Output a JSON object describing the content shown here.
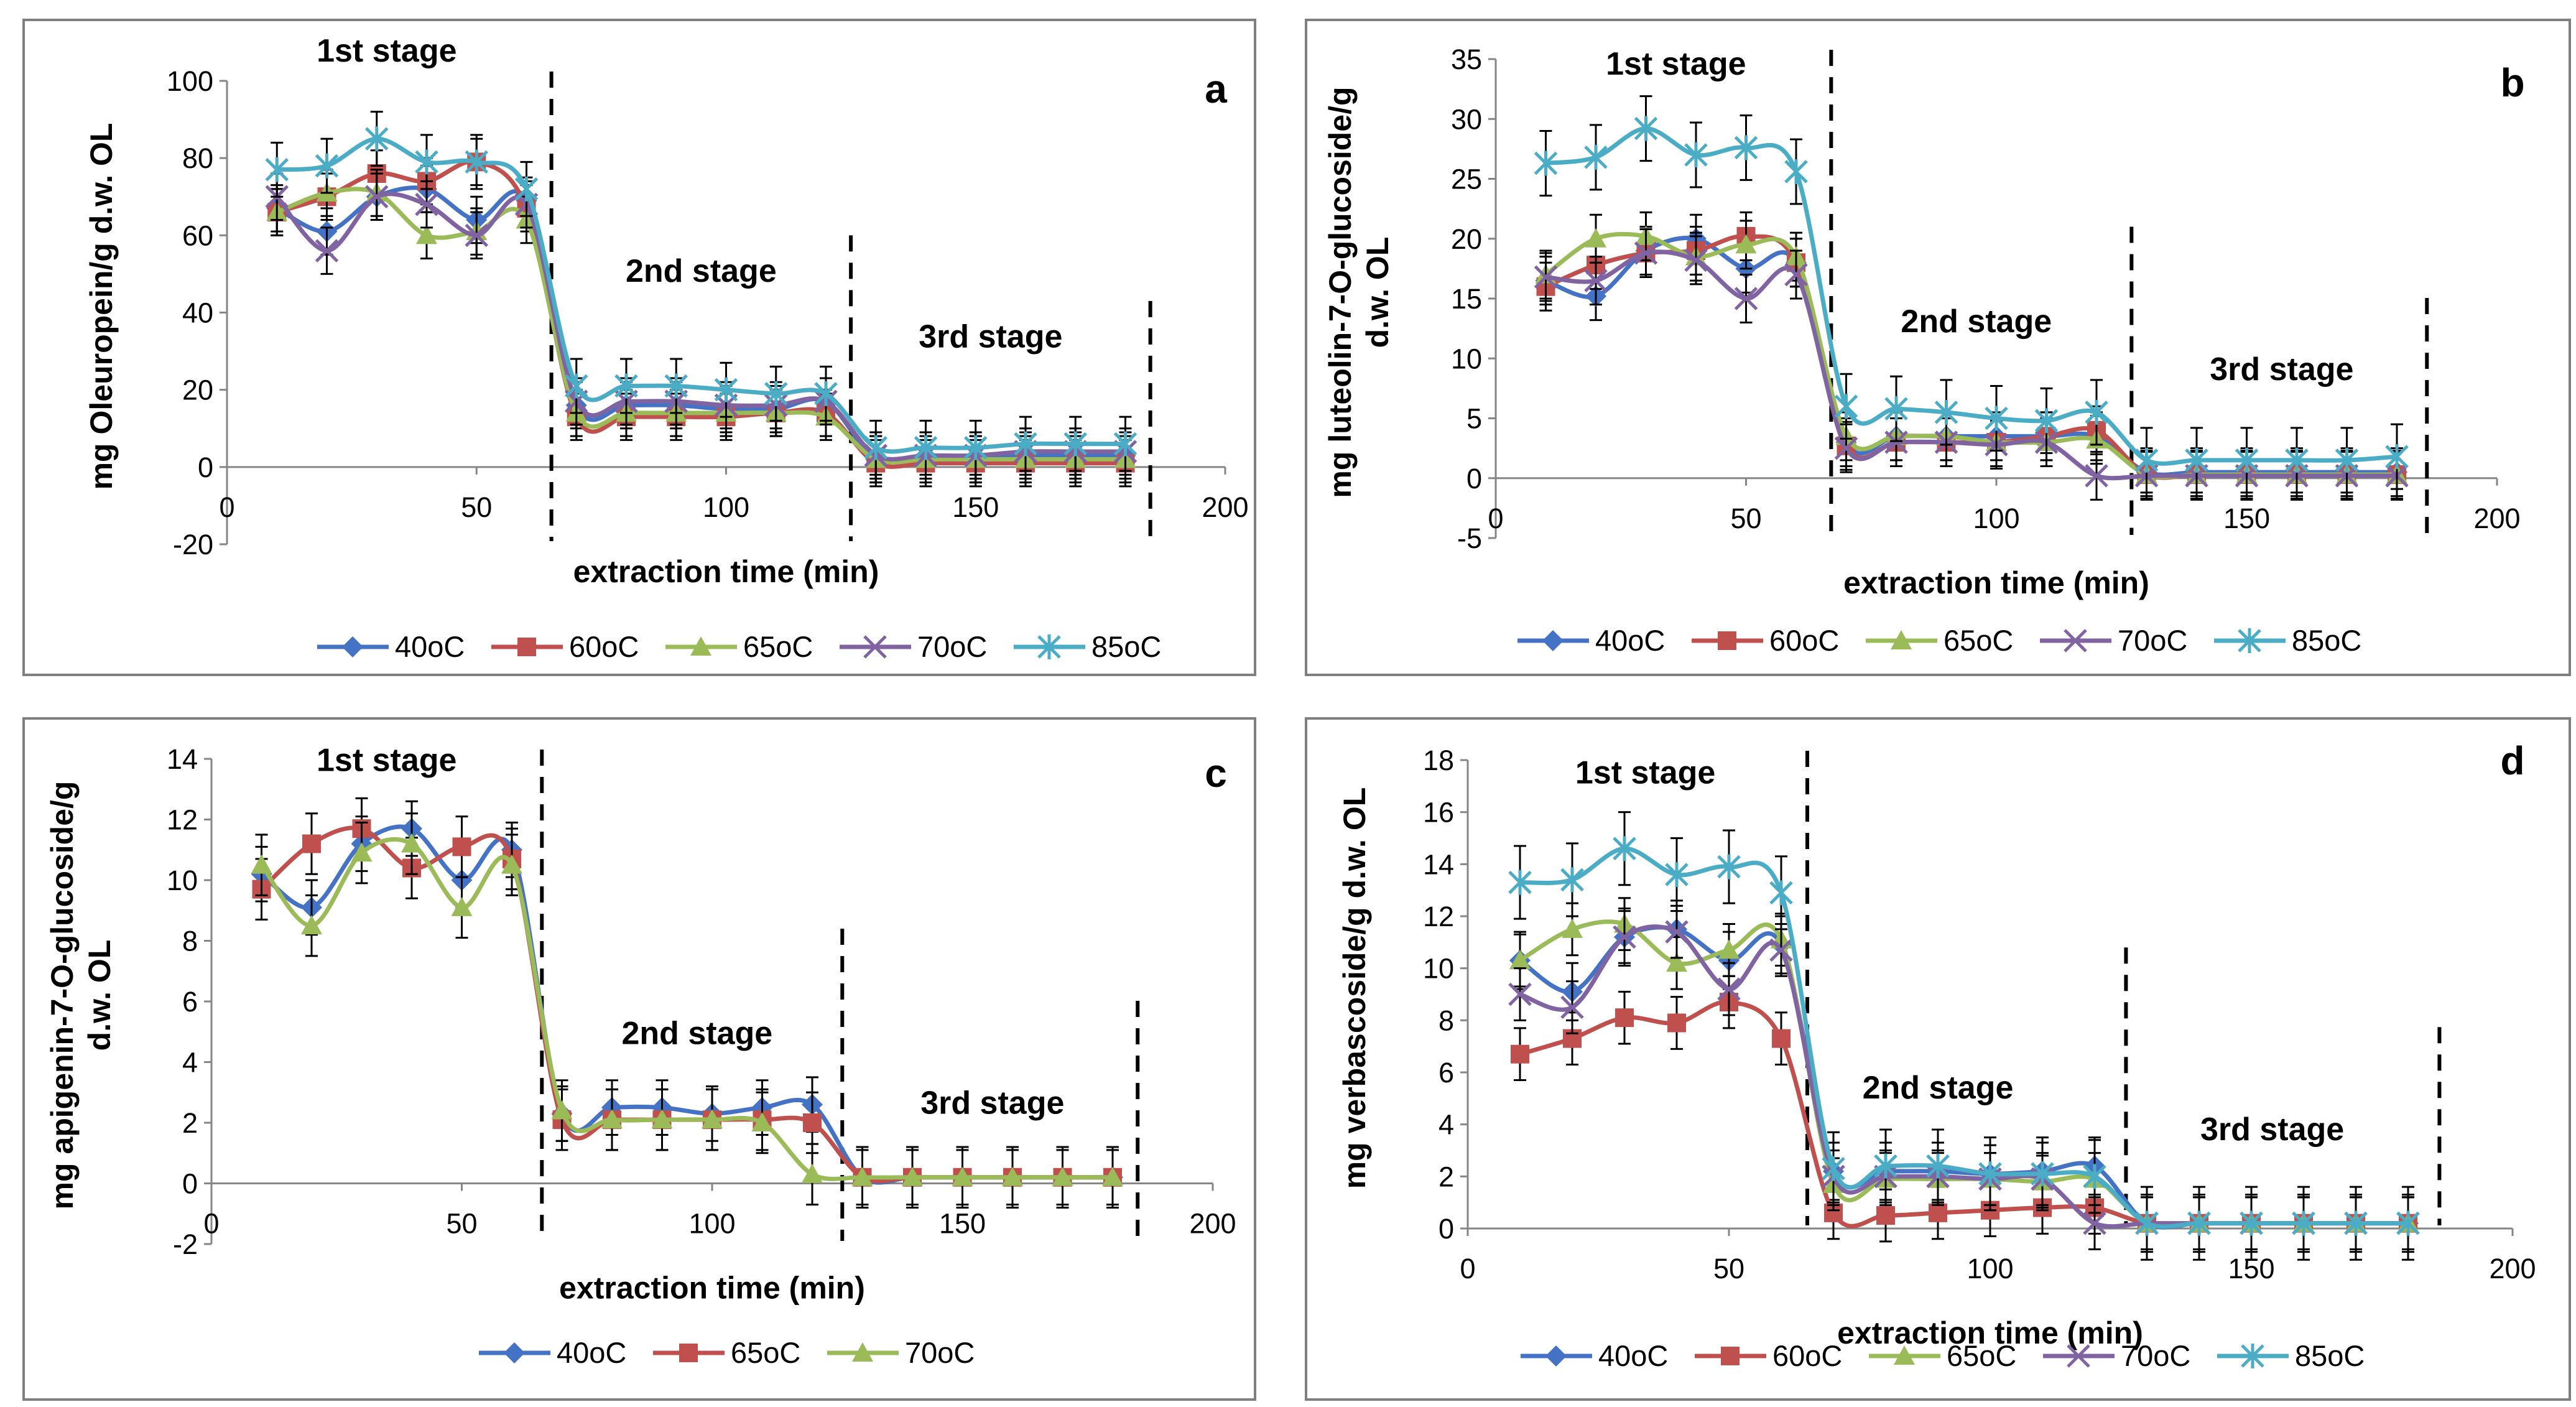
{
  "figure": {
    "x_title": "extraction time (min)",
    "stage_labels": [
      "1st stage",
      "2nd stage",
      "3rd stage"
    ]
  },
  "chart_data": [
    {
      "type": "line",
      "panel": "a",
      "ylabel": "mg Oleuropein/g d.w. OL",
      "xlabel": "extraction time (min)",
      "xlim": [
        0,
        200
      ],
      "ylim": [
        -20,
        100
      ],
      "xticks": [
        0,
        50,
        100,
        150,
        200
      ],
      "yticks": [
        -20,
        0,
        20,
        40,
        60,
        80,
        100
      ],
      "x": [
        10,
        20,
        30,
        40,
        50,
        60,
        70,
        80,
        90,
        100,
        110,
        120,
        130,
        140,
        150,
        160,
        170,
        180
      ],
      "stage_boundaries": [
        65,
        125,
        185
      ],
      "stage_label_x": [
        32,
        95,
        153
      ],
      "stage_label_y": [
        105,
        48,
        31
      ],
      "series": [
        {
          "name": "40oC",
          "color": "#4472C4",
          "marker": "diamond",
          "error": 6,
          "values": [
            67,
            61,
            70,
            72,
            64,
            69,
            16,
            16,
            16,
            15,
            15,
            17,
            2,
            3,
            2,
            3,
            3,
            3
          ]
        },
        {
          "name": "60oC",
          "color": "#C0504D",
          "marker": "square",
          "error": 6,
          "values": [
            66,
            70,
            76,
            74,
            79,
            67,
            13,
            13,
            13,
            13,
            14,
            14,
            1,
            1,
            1,
            1,
            1,
            1
          ]
        },
        {
          "name": "65oC",
          "color": "#9BBB59",
          "marker": "triangle",
          "error": 6,
          "values": [
            66,
            71,
            71,
            60,
            61,
            64,
            14,
            14,
            14,
            14,
            14,
            13,
            2,
            2,
            2,
            2,
            2,
            2
          ]
        },
        {
          "name": "70oC",
          "color": "#8064A2",
          "marker": "x",
          "error": 6,
          "values": [
            70,
            56,
            70,
            68,
            60,
            68,
            17,
            17,
            17,
            16,
            16,
            17,
            3,
            3,
            3,
            4,
            4,
            4
          ]
        },
        {
          "name": "85oC",
          "color": "#4BACC6",
          "marker": "star",
          "error": 7,
          "values": [
            77,
            78,
            85,
            79,
            79,
            72,
            21,
            21,
            21,
            20,
            19,
            19,
            5,
            5,
            5,
            6,
            6,
            6
          ]
        }
      ]
    },
    {
      "type": "line",
      "panel": "b",
      "ylabel": "mg luteolin-7-O-glucoside/g d.w. OL",
      "xlabel": "extraction time (min)",
      "xlim": [
        0,
        200
      ],
      "ylim": [
        -5,
        35
      ],
      "xticks": [
        0,
        50,
        100,
        150,
        200
      ],
      "yticks": [
        -5,
        0,
        5,
        10,
        15,
        20,
        25,
        30,
        35
      ],
      "x": [
        10,
        20,
        30,
        40,
        50,
        60,
        70,
        80,
        90,
        100,
        110,
        120,
        130,
        140,
        150,
        160,
        170,
        180
      ],
      "stage_boundaries": [
        67,
        127,
        186
      ],
      "stage_label_x": [
        36,
        96,
        157
      ],
      "stage_label_y": [
        33.7,
        12.2,
        8.2
      ],
      "series": [
        {
          "name": "40oC",
          "color": "#4472C4",
          "marker": "diamond",
          "error": 2,
          "values": [
            16.5,
            15.2,
            19,
            20,
            17.5,
            18,
            3,
            3.5,
            3.5,
            3.5,
            3.5,
            3.5,
            0.5,
            0.5,
            0.5,
            0.5,
            0.5,
            0.5
          ]
        },
        {
          "name": "60oC",
          "color": "#C0504D",
          "marker": "square",
          "error": 2,
          "values": [
            16,
            17.8,
            18.8,
            19,
            20.2,
            18,
            2.7,
            3,
            3,
            3,
            3.5,
            4,
            0.3,
            0.3,
            0.3,
            0.3,
            0.3,
            0.3
          ]
        },
        {
          "name": "65oC",
          "color": "#9BBB59",
          "marker": "triangle",
          "error": 2,
          "values": [
            17,
            20,
            20.2,
            18.5,
            19.5,
            18.5,
            3.5,
            3.5,
            3.5,
            3,
            3,
            3.2,
            0.3,
            0.3,
            0.3,
            0.3,
            0.3,
            0.3
          ]
        },
        {
          "name": "70oC",
          "color": "#8064A2",
          "marker": "x",
          "error": 2,
          "values": [
            16.8,
            16.5,
            18.8,
            18.2,
            15,
            17,
            2.5,
            3,
            3,
            2.8,
            3,
            0.2,
            0.2,
            0.2,
            0.2,
            0.2,
            0.2,
            0.2
          ]
        },
        {
          "name": "85oC",
          "color": "#4BACC6",
          "marker": "star",
          "error": 2.7,
          "values": [
            26.3,
            26.8,
            29.2,
            27,
            27.6,
            25.6,
            6,
            5.8,
            5.5,
            5,
            4.8,
            5.5,
            1.5,
            1.5,
            1.5,
            1.5,
            1.5,
            1.8
          ]
        }
      ]
    },
    {
      "type": "line",
      "panel": "c",
      "ylabel": "mg apigenin-7-O-glucoside/g d.w. OL",
      "xlabel": "extraction time (min)",
      "xlim": [
        0,
        200
      ],
      "ylim": [
        -2,
        14
      ],
      "xticks": [
        0,
        50,
        100,
        150,
        200
      ],
      "yticks": [
        -2,
        0,
        2,
        4,
        6,
        8,
        10,
        12,
        14
      ],
      "x": [
        10,
        20,
        30,
        40,
        50,
        60,
        70,
        80,
        90,
        100,
        110,
        120,
        130,
        140,
        150,
        160,
        170,
        180
      ],
      "stage_boundaries": [
        66,
        126,
        185
      ],
      "stage_label_x": [
        35,
        97,
        156
      ],
      "stage_label_y": [
        13.6,
        4.6,
        2.3
      ],
      "series": [
        {
          "name": "40oC",
          "color": "#4472C4",
          "marker": "diamond",
          "error": 0.9,
          "values": [
            10.2,
            9.1,
            11.2,
            11.7,
            10,
            11,
            2.3,
            2.5,
            2.5,
            2.3,
            2.5,
            2.6,
            0.2,
            0.2,
            0.2,
            0.2,
            0.2,
            0.2
          ]
        },
        {
          "name": "65oC",
          "color": "#C0504D",
          "marker": "square",
          "error": 1,
          "values": [
            9.7,
            11.2,
            11.7,
            10.4,
            11.1,
            10.7,
            2.1,
            2.1,
            2.1,
            2.1,
            2.1,
            2,
            0.2,
            0.2,
            0.2,
            0.2,
            0.2,
            0.2
          ]
        },
        {
          "name": "70oC",
          "color": "#9BBB59",
          "marker": "triangle",
          "error": 1,
          "values": [
            10.5,
            8.5,
            10.9,
            11.2,
            9.1,
            10.5,
            2.4,
            2.1,
            2.1,
            2.1,
            2,
            0.3,
            0.2,
            0.2,
            0.2,
            0.2,
            0.2,
            0.2
          ]
        }
      ]
    },
    {
      "type": "line",
      "panel": "d",
      "ylabel": "mg verbascoside/g d.w. OL",
      "xlabel": "extraction time (min)",
      "xlim": [
        0,
        200
      ],
      "ylim": [
        0,
        18
      ],
      "xticks": [
        0,
        50,
        100,
        150,
        200
      ],
      "yticks": [
        0,
        2,
        4,
        6,
        8,
        10,
        12,
        14,
        16,
        18
      ],
      "x": [
        10,
        20,
        30,
        40,
        50,
        60,
        70,
        80,
        90,
        100,
        110,
        120,
        130,
        140,
        150,
        160,
        170,
        180
      ],
      "stage_boundaries": [
        65,
        126,
        186
      ],
      "stage_label_x": [
        34,
        90,
        154
      ],
      "stage_label_y": [
        17.1,
        5,
        3.4
      ],
      "series": [
        {
          "name": "40oC",
          "color": "#4472C4",
          "marker": "diamond",
          "error": 1.1,
          "values": [
            10.3,
            9.1,
            11.2,
            11.5,
            10.3,
            10.9,
            2.2,
            2.2,
            2.2,
            2.1,
            2.2,
            2.4,
            0.2,
            0.2,
            0.2,
            0.2,
            0.2,
            0.2
          ]
        },
        {
          "name": "60oC",
          "color": "#C0504D",
          "marker": "square",
          "error": 1,
          "values": [
            6.7,
            7.3,
            8.1,
            7.9,
            8.7,
            7.3,
            0.6,
            0.5,
            0.6,
            0.7,
            0.8,
            0.8,
            0.2,
            0.2,
            0.2,
            0.2,
            0.2,
            0.2
          ]
        },
        {
          "name": "65oC",
          "color": "#9BBB59",
          "marker": "triangle",
          "error": 1,
          "values": [
            10.3,
            11.5,
            11.7,
            10.2,
            10.7,
            11.1,
            1.7,
            1.9,
            1.9,
            1.9,
            1.8,
            1.9,
            0.2,
            0.2,
            0.2,
            0.2,
            0.2,
            0.2
          ]
        },
        {
          "name": "70oC",
          "color": "#8064A2",
          "marker": "x",
          "error": 1,
          "values": [
            9,
            8.5,
            11.2,
            11.4,
            9.2,
            10.7,
            2,
            2,
            2,
            1.9,
            1.9,
            0.2,
            0.2,
            0.2,
            0.2,
            0.2,
            0.2,
            0.2
          ]
        },
        {
          "name": "85oC",
          "color": "#4BACC6",
          "marker": "star",
          "error": 1.4,
          "values": [
            13.3,
            13.4,
            14.6,
            13.6,
            13.9,
            12.9,
            2.3,
            2.4,
            2.4,
            2.1,
            2.1,
            2,
            0.2,
            0.2,
            0.2,
            0.2,
            0.2,
            0.2
          ]
        }
      ]
    }
  ]
}
